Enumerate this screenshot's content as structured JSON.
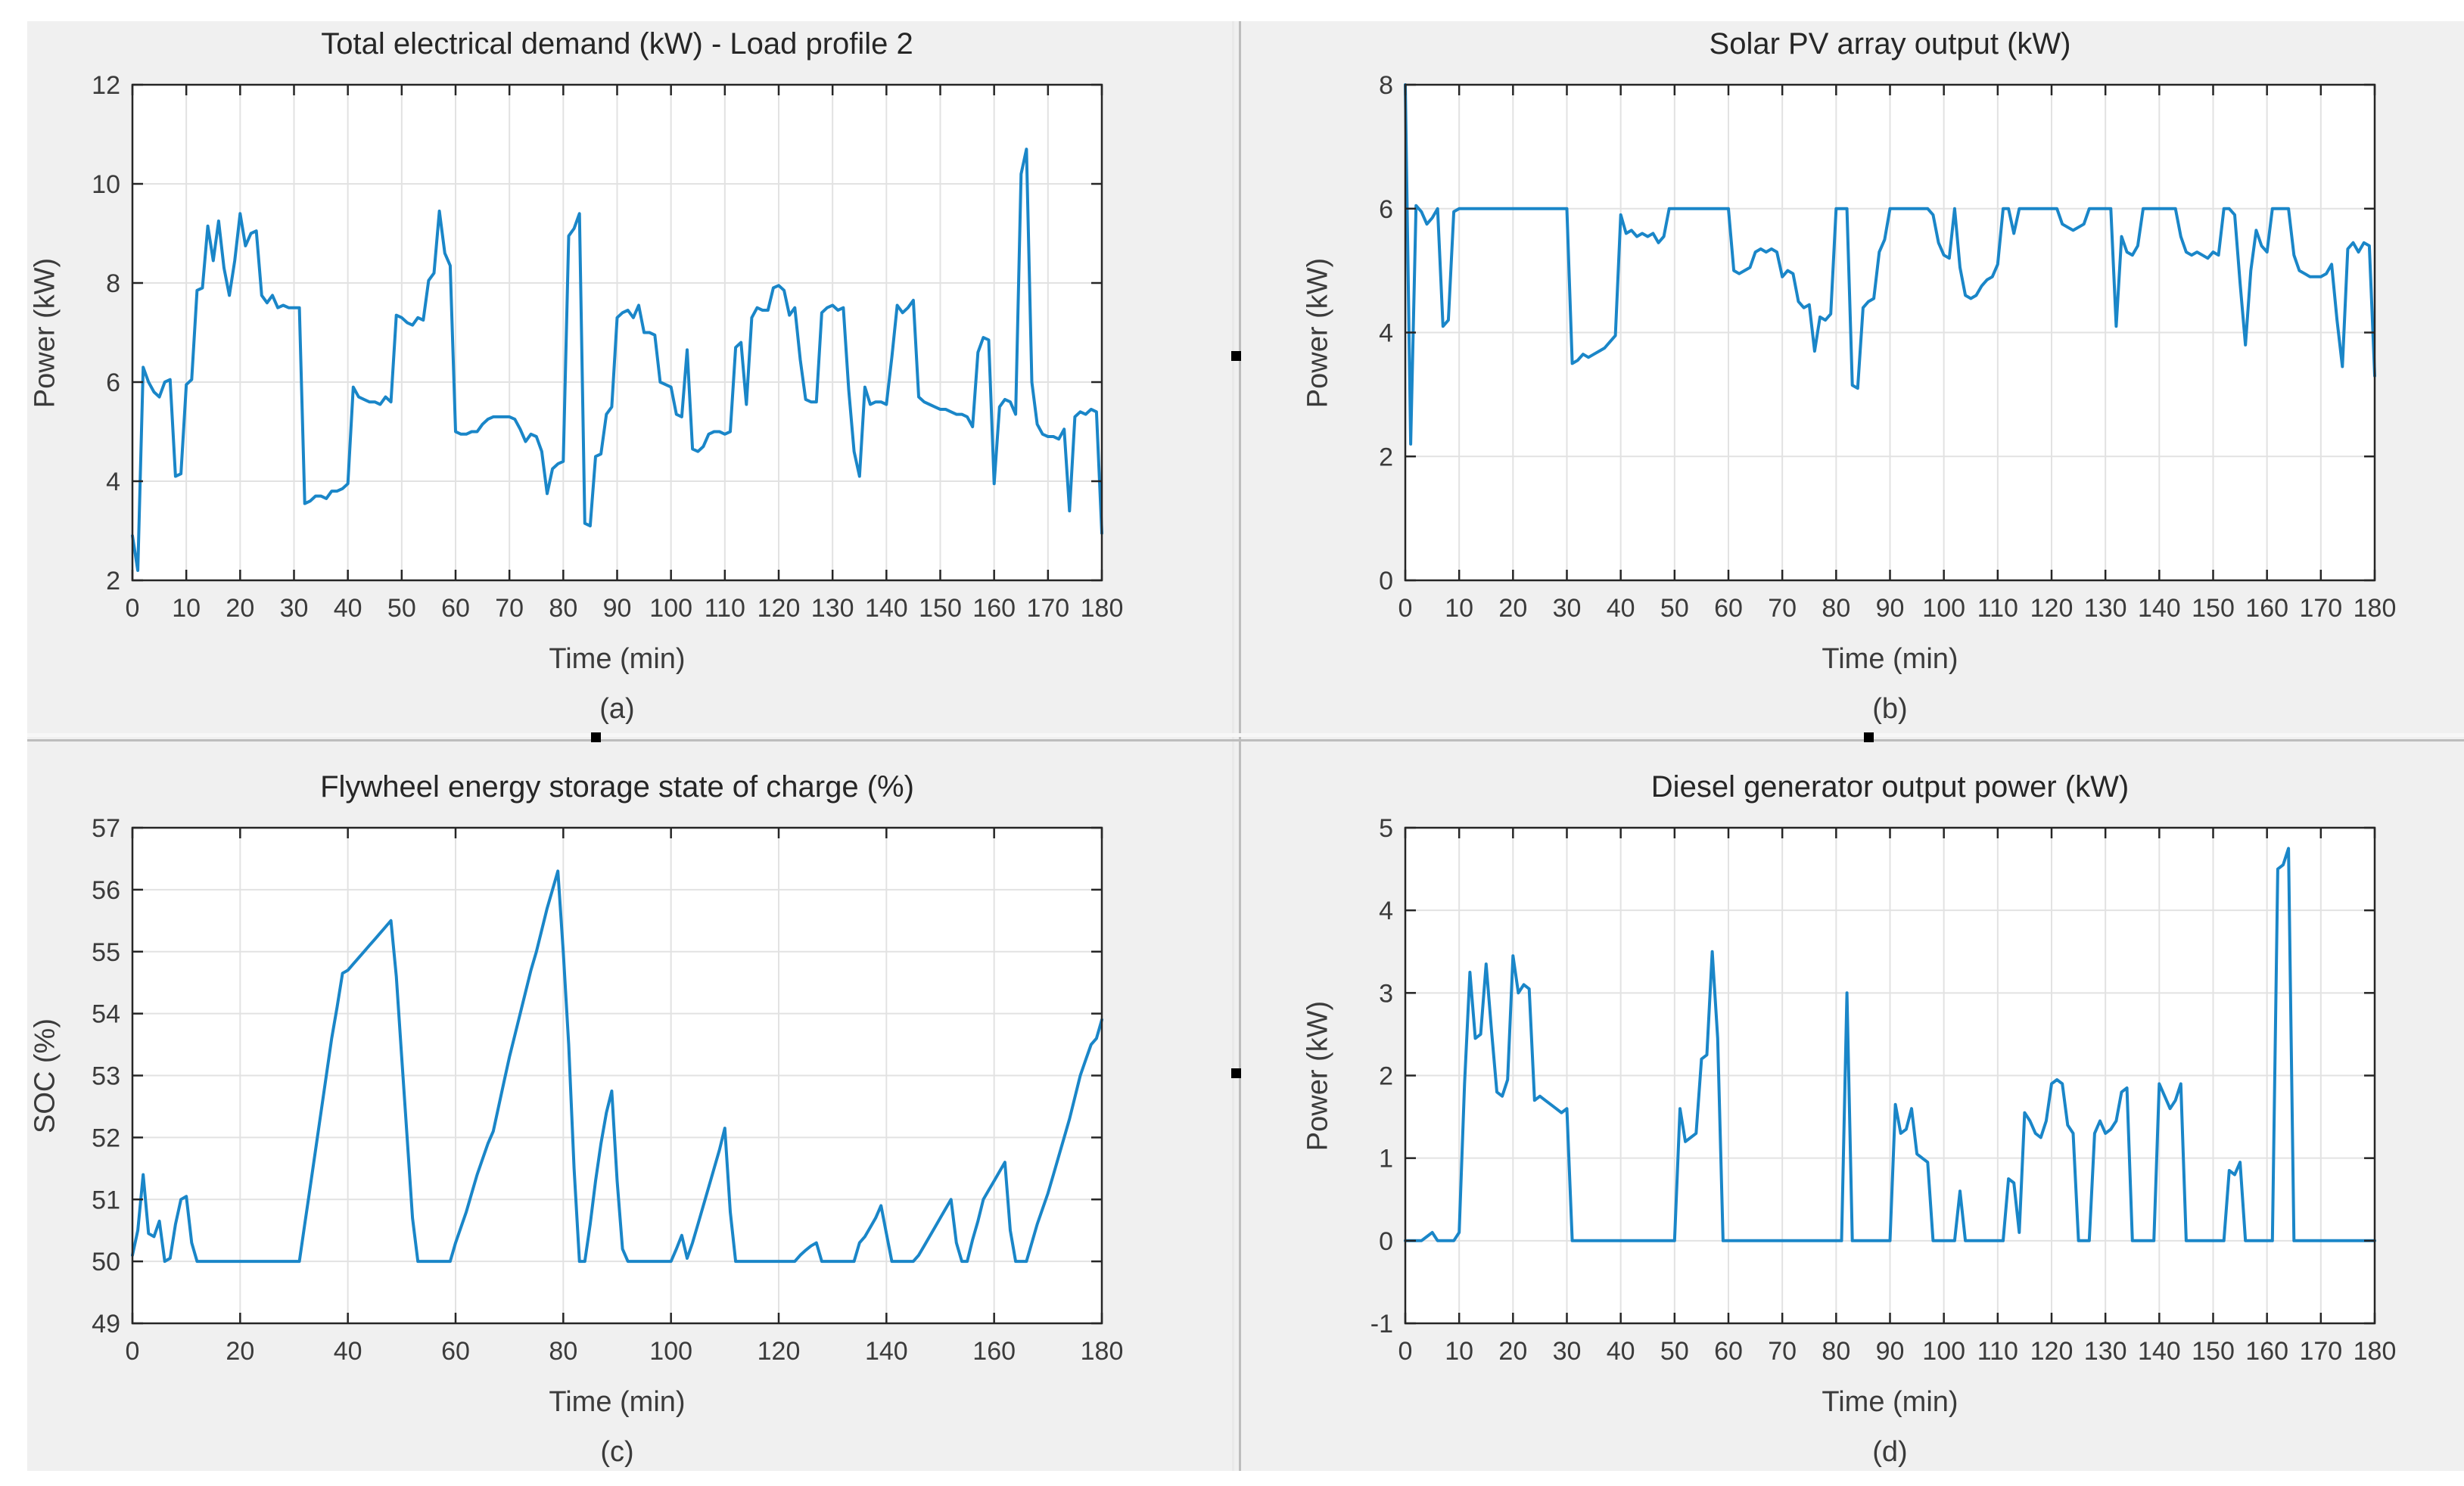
{
  "figure": {
    "background": "#f0f0f0",
    "page_background": "#ffffff",
    "line_color": "#1a86c8",
    "axis_color": "#262626",
    "grid_color": "#e2e2e2",
    "tick_label_color": "#3b3b3b",
    "selection_handle_icon": "black-square-handle",
    "selection_handle_color": "#000000"
  },
  "chart_data": [
    {
      "id": "a",
      "type": "line",
      "title": "Total electrical demand (kW) - Load profile 2",
      "xlabel": "Time (min)",
      "ylabel": "Power (kW)",
      "panel_label": "(a)",
      "xlim": [
        0,
        180
      ],
      "ylim": [
        2,
        12
      ],
      "xtick_step": 10,
      "yticks": [
        2,
        4,
        6,
        8,
        10,
        12
      ],
      "x_minutes_step": 1,
      "grid": true,
      "legend": null,
      "values": [
        2.9,
        2.2,
        6.3,
        6.0,
        5.8,
        5.7,
        6.0,
        6.05,
        4.1,
        4.15,
        5.95,
        6.05,
        7.85,
        7.9,
        9.15,
        8.45,
        9.25,
        8.3,
        7.75,
        8.45,
        9.4,
        8.75,
        9.0,
        9.05,
        7.75,
        7.6,
        7.75,
        7.5,
        7.55,
        7.5,
        7.5,
        7.5,
        3.55,
        3.6,
        3.7,
        3.7,
        3.65,
        3.8,
        3.8,
        3.85,
        3.95,
        5.9,
        5.7,
        5.65,
        5.6,
        5.6,
        5.55,
        5.7,
        5.6,
        7.35,
        7.3,
        7.2,
        7.15,
        7.3,
        7.25,
        8.05,
        8.2,
        9.45,
        8.6,
        8.35,
        5.0,
        4.95,
        4.95,
        5.0,
        5.0,
        5.15,
        5.25,
        5.3,
        5.3,
        5.3,
        5.3,
        5.25,
        5.05,
        4.8,
        4.95,
        4.9,
        4.6,
        3.75,
        4.25,
        4.35,
        4.4,
        8.95,
        9.1,
        9.4,
        3.15,
        3.1,
        4.5,
        4.55,
        5.35,
        5.5,
        7.3,
        7.4,
        7.45,
        7.3,
        7.55,
        7.0,
        7.0,
        6.95,
        6.0,
        5.95,
        5.9,
        5.35,
        5.3,
        6.65,
        4.65,
        4.6,
        4.7,
        4.95,
        5.0,
        5.0,
        4.95,
        5.0,
        6.7,
        6.8,
        5.55,
        7.3,
        7.5,
        7.45,
        7.45,
        7.9,
        7.95,
        7.85,
        7.35,
        7.5,
        6.45,
        5.65,
        5.6,
        5.6,
        7.4,
        7.5,
        7.55,
        7.45,
        7.5,
        5.85,
        4.6,
        4.1,
        5.9,
        5.55,
        5.6,
        5.6,
        5.55,
        6.5,
        7.55,
        7.4,
        7.5,
        7.65,
        5.7,
        5.6,
        5.55,
        5.5,
        5.45,
        5.45,
        5.4,
        5.35,
        5.35,
        5.3,
        5.1,
        6.6,
        6.9,
        6.85,
        3.95,
        5.5,
        5.65,
        5.6,
        5.35,
        10.2,
        10.7,
        6.0,
        5.15,
        4.95,
        4.9,
        4.9,
        4.85,
        5.05,
        3.4,
        5.3,
        5.4,
        5.35,
        5.45,
        5.4,
        2.95
      ]
    },
    {
      "id": "b",
      "type": "line",
      "title": "Solar PV array output (kW)",
      "xlabel": "Time (min)",
      "ylabel": "Power (kW)",
      "panel_label": "(b)",
      "xlim": [
        0,
        180
      ],
      "ylim": [
        0,
        8
      ],
      "xtick_step": 10,
      "yticks": [
        0,
        2,
        4,
        6,
        8
      ],
      "x_minutes_step": 1,
      "grid": true,
      "legend": null,
      "values": [
        8.0,
        2.2,
        6.05,
        5.95,
        5.75,
        5.85,
        6.0,
        4.1,
        4.2,
        5.95,
        6.0,
        6.0,
        6.0,
        6.0,
        6.0,
        6.0,
        6.0,
        6.0,
        6.0,
        6.0,
        6.0,
        6.0,
        6.0,
        6.0,
        6.0,
        6.0,
        6.0,
        6.0,
        6.0,
        6.0,
        6.0,
        3.5,
        3.55,
        3.65,
        3.6,
        3.65,
        3.7,
        3.75,
        3.85,
        3.95,
        5.9,
        5.6,
        5.65,
        5.55,
        5.6,
        5.55,
        5.6,
        5.45,
        5.55,
        6.0,
        6.0,
        6.0,
        6.0,
        6.0,
        6.0,
        6.0,
        6.0,
        6.0,
        6.0,
        6.0,
        6.0,
        5.0,
        4.95,
        5.0,
        5.05,
        5.3,
        5.35,
        5.3,
        5.35,
        5.3,
        4.9,
        5.0,
        4.95,
        4.5,
        4.4,
        4.45,
        3.7,
        4.25,
        4.2,
        4.3,
        6.0,
        6.0,
        6.0,
        3.15,
        3.1,
        4.4,
        4.5,
        4.55,
        5.3,
        5.5,
        6.0,
        6.0,
        6.0,
        6.0,
        6.0,
        6.0,
        6.0,
        6.0,
        5.9,
        5.45,
        5.25,
        5.2,
        6.0,
        5.05,
        4.6,
        4.55,
        4.6,
        4.75,
        4.85,
        4.9,
        5.1,
        6.0,
        6.0,
        5.6,
        6.0,
        6.0,
        6.0,
        6.0,
        6.0,
        6.0,
        6.0,
        6.0,
        5.75,
        5.7,
        5.65,
        5.7,
        5.75,
        6.0,
        6.0,
        6.0,
        6.0,
        6.0,
        4.1,
        5.55,
        5.3,
        5.25,
        5.4,
        6.0,
        6.0,
        6.0,
        6.0,
        6.0,
        6.0,
        6.0,
        5.55,
        5.3,
        5.25,
        5.3,
        5.25,
        5.2,
        5.3,
        5.25,
        6.0,
        6.0,
        5.9,
        4.8,
        3.8,
        5.0,
        5.65,
        5.4,
        5.3,
        6.0,
        6.0,
        6.0,
        6.0,
        5.25,
        5.0,
        4.95,
        4.9,
        4.9,
        4.9,
        4.95,
        5.1,
        4.2,
        3.45,
        5.35,
        5.45,
        5.3,
        5.45,
        5.4,
        3.3
      ]
    },
    {
      "id": "c",
      "type": "line",
      "title": "Flywheel energy storage state of charge (%)",
      "xlabel": "Time (min)",
      "ylabel": "SOC (%)",
      "panel_label": "(c)",
      "xlim": [
        0,
        180
      ],
      "ylim": [
        49,
        57
      ],
      "xtick_step": 20,
      "yticks": [
        49,
        50,
        51,
        52,
        53,
        54,
        55,
        56,
        57
      ],
      "x_minutes_step": 1,
      "grid": true,
      "legend": null,
      "values": [
        50.1,
        50.5,
        51.4,
        50.45,
        50.4,
        50.65,
        50.0,
        50.05,
        50.6,
        51.0,
        51.05,
        50.3,
        50.0,
        50.0,
        50.0,
        50.0,
        50.0,
        50.0,
        50.0,
        50.0,
        50.0,
        50.0,
        50.0,
        50.0,
        50.0,
        50.0,
        50.0,
        50.0,
        50.0,
        50.0,
        50.0,
        50.0,
        50.6,
        51.2,
        51.8,
        52.4,
        53.0,
        53.6,
        54.1,
        54.65,
        54.7,
        54.8,
        54.9,
        55.0,
        55.1,
        55.2,
        55.3,
        55.4,
        55.5,
        54.6,
        53.3,
        52.0,
        50.7,
        50.0,
        50.0,
        50.0,
        50.0,
        50.0,
        50.0,
        50.0,
        50.3,
        50.55,
        50.8,
        51.1,
        51.4,
        51.65,
        51.9,
        52.1,
        52.5,
        52.9,
        53.3,
        53.65,
        54.0,
        54.35,
        54.7,
        55.0,
        55.35,
        55.7,
        56.0,
        56.3,
        55.0,
        53.5,
        51.5,
        50.0,
        50.0,
        50.6,
        51.3,
        51.9,
        52.4,
        52.75,
        51.3,
        50.2,
        50.0,
        50.0,
        50.0,
        50.0,
        50.0,
        50.0,
        50.0,
        50.0,
        50.0,
        50.2,
        50.42,
        50.05,
        50.3,
        50.6,
        50.9,
        51.2,
        51.5,
        51.8,
        52.15,
        50.8,
        50.0,
        50.0,
        50.0,
        50.0,
        50.0,
        50.0,
        50.0,
        50.0,
        50.0,
        50.0,
        50.0,
        50.0,
        50.1,
        50.18,
        50.25,
        50.3,
        50.0,
        50.0,
        50.0,
        50.0,
        50.0,
        50.0,
        50.0,
        50.3,
        50.4,
        50.55,
        50.7,
        50.9,
        50.45,
        50.0,
        50.0,
        50.0,
        50.0,
        50.0,
        50.1,
        50.25,
        50.4,
        50.55,
        50.7,
        50.85,
        51.0,
        50.3,
        50.0,
        50.0,
        50.35,
        50.65,
        51.0,
        51.15,
        51.3,
        51.45,
        51.6,
        50.5,
        50.0,
        50.0,
        50.0,
        50.3,
        50.6,
        50.85,
        51.1,
        51.4,
        51.7,
        52.0,
        52.3,
        52.65,
        53.0,
        53.25,
        53.5,
        53.6,
        53.9
      ]
    },
    {
      "id": "d",
      "type": "line",
      "title": "Diesel generator output power (kW)",
      "xlabel": "Time (min)",
      "ylabel": "Power (kW)",
      "panel_label": "(d)",
      "xlim": [
        0,
        180
      ],
      "ylim": [
        -1,
        5
      ],
      "xtick_step": 10,
      "yticks": [
        -1,
        0,
        1,
        2,
        3,
        4,
        5
      ],
      "x_minutes_step": 1,
      "grid": true,
      "legend": null,
      "values": [
        0,
        0,
        0,
        0,
        0.05,
        0.1,
        0,
        0,
        0,
        0,
        0.1,
        1.9,
        3.25,
        2.45,
        2.5,
        3.35,
        2.55,
        1.8,
        1.75,
        1.95,
        3.45,
        3.0,
        3.1,
        3.05,
        1.7,
        1.75,
        1.7,
        1.65,
        1.6,
        1.55,
        1.6,
        0,
        0,
        0,
        0,
        0,
        0,
        0,
        0,
        0,
        0,
        0,
        0,
        0,
        0,
        0,
        0,
        0,
        0,
        0,
        0,
        1.6,
        1.2,
        1.25,
        1.3,
        2.2,
        2.25,
        3.5,
        2.45,
        0,
        0,
        0,
        0,
        0,
        0,
        0,
        0,
        0,
        0,
        0,
        0,
        0,
        0,
        0,
        0,
        0,
        0,
        0,
        0,
        0,
        0,
        0,
        3.0,
        0,
        0,
        0,
        0,
        0,
        0,
        0,
        0,
        1.65,
        1.3,
        1.35,
        1.6,
        1.05,
        1.0,
        0.95,
        0,
        0,
        0,
        0,
        0,
        0.6,
        0,
        0,
        0,
        0,
        0,
        0,
        0,
        0,
        0.75,
        0.7,
        0.1,
        1.55,
        1.45,
        1.3,
        1.25,
        1.45,
        1.9,
        1.95,
        1.9,
        1.4,
        1.3,
        0,
        0,
        0,
        1.3,
        1.45,
        1.3,
        1.35,
        1.45,
        1.8,
        1.85,
        0,
        0,
        0,
        0,
        0,
        1.9,
        1.75,
        1.6,
        1.7,
        1.9,
        0,
        0,
        0,
        0,
        0,
        0,
        0,
        0,
        0.85,
        0.8,
        0.95,
        0,
        0,
        0,
        0,
        0,
        0,
        4.5,
        4.55,
        4.75,
        0,
        0,
        0,
        0,
        0,
        0,
        0,
        0,
        0,
        0,
        0,
        0,
        0,
        0,
        0,
        0
      ]
    }
  ]
}
